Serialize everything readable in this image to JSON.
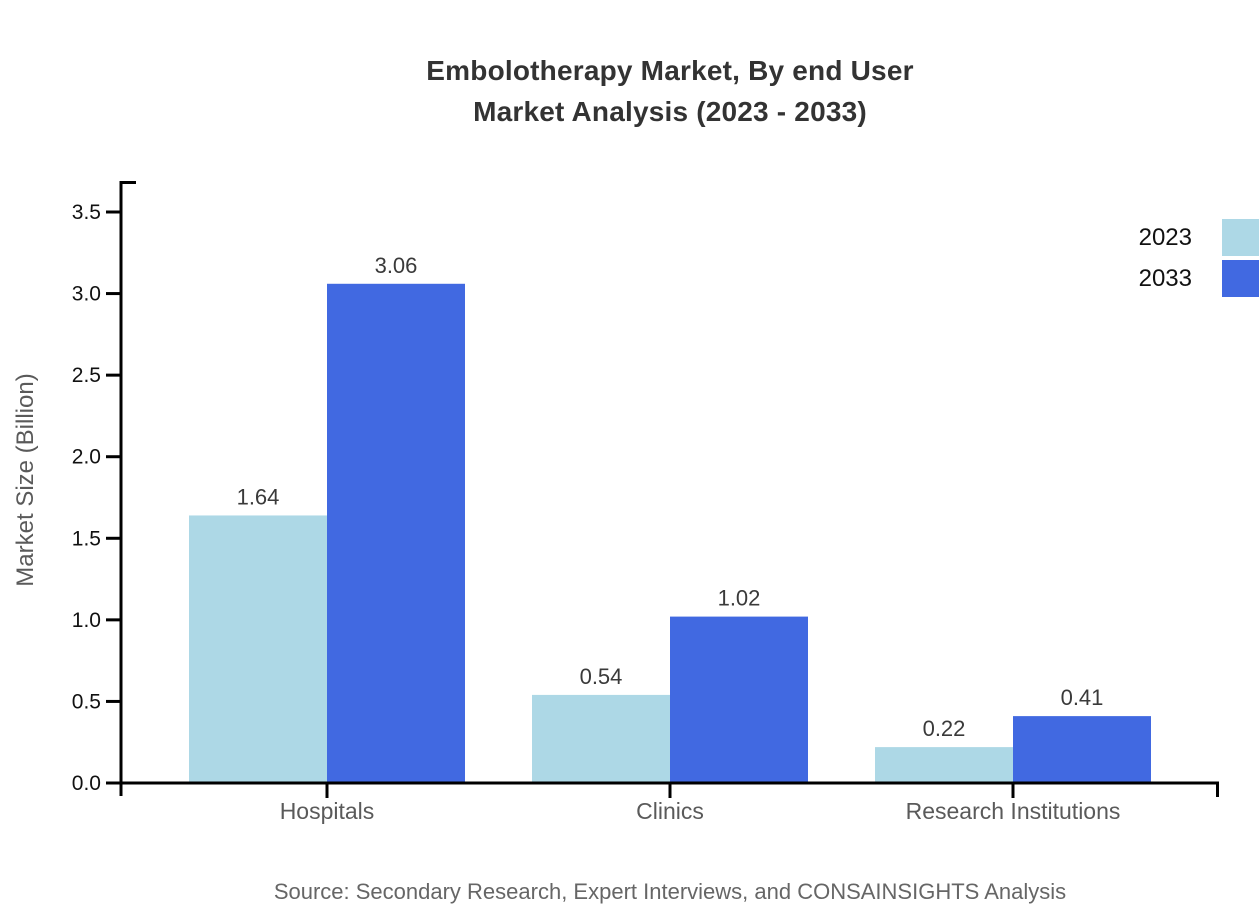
{
  "header": {
    "title_line1": "Embolotherapy Market, By end User",
    "title_line2": "Market Analysis (2023 - 2033)"
  },
  "chart_data": {
    "type": "bar",
    "title": "Embolotherapy Market, By end User Market Analysis (2023 - 2033)",
    "categories": [
      "Hospitals",
      "Clinics",
      "Research Institutions"
    ],
    "series": [
      {
        "name": "2023",
        "color": "#ADD8E6",
        "values": [
          1.64,
          0.54,
          0.22
        ]
      },
      {
        "name": "2033",
        "color": "#4169E1",
        "values": [
          3.06,
          1.02,
          0.41
        ]
      }
    ],
    "xlabel": "",
    "ylabel": "Market Size (Billion)",
    "ylim": [
      0,
      3.5
    ],
    "yticks": [
      0.0,
      0.5,
      1.0,
      1.5,
      2.0,
      2.5,
      3.0,
      3.5
    ],
    "grid": false,
    "value_labels": true,
    "legend_position": "top-right"
  },
  "footer": {
    "source": "Source: Secondary Research, Expert Interviews, and CONSAINSIGHTS Analysis"
  }
}
